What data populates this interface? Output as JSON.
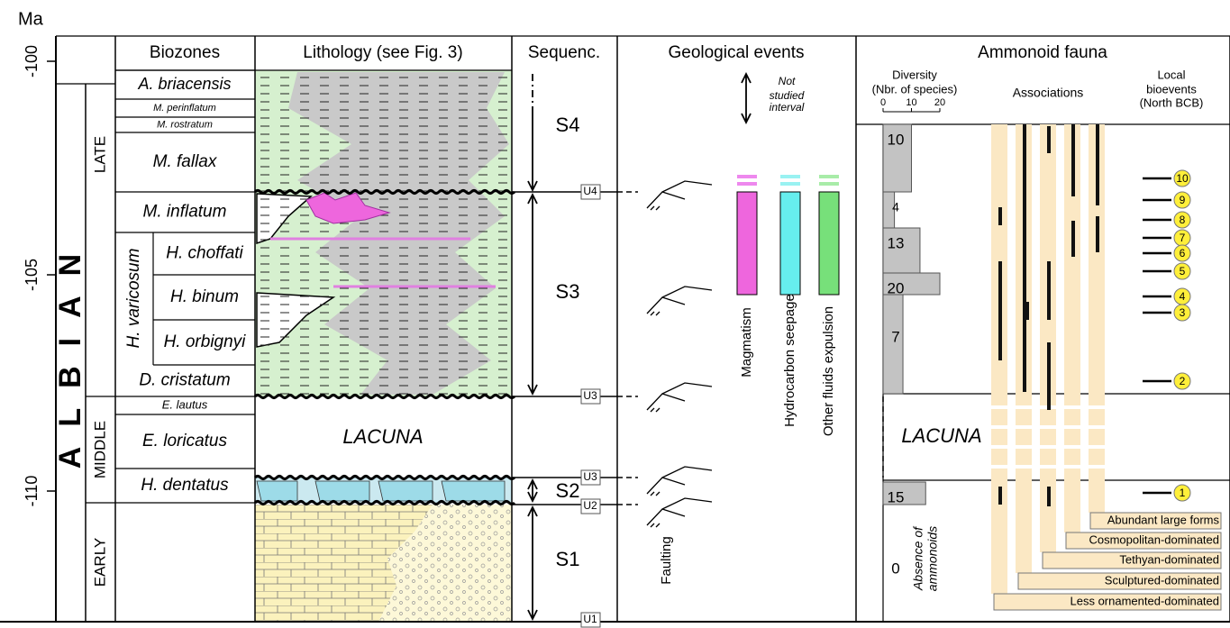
{
  "axis": {
    "unit": "Ma",
    "ticks": [
      "-100",
      "-105",
      "-110"
    ]
  },
  "headers": {
    "biozones": "Biozones",
    "lithology": "Lithology (see Fig. 3)",
    "sequences": "Sequenc.",
    "events": "Geological events",
    "fauna": "Ammonoid fauna"
  },
  "stage": "ALBIAN",
  "substages": [
    "LATE",
    "MIDDLE",
    "EARLY"
  ],
  "biozones": [
    "A. briacensis",
    "M. perinflatum",
    "M. rostratum",
    "M. fallax",
    "M. inflatum",
    "D. cristatum",
    "E. lautus",
    "E. loricatus",
    "H. dentatus"
  ],
  "subzone_group": "H. varicosum",
  "subzones": [
    "H. choffati",
    "H. binum",
    "H. orbignyi"
  ],
  "lithology": {
    "lacuna": "LACUNA"
  },
  "sequences": [
    "S4",
    "S3",
    "S2",
    "S1"
  ],
  "unconformities": [
    "U4",
    "U3",
    "U3",
    "U2",
    "U1"
  ],
  "events": {
    "note": [
      "Not",
      "studied",
      "interval"
    ],
    "bars": [
      "Magmatism",
      "Hydrocarbon seepage",
      "Other fluids expulsion"
    ],
    "faulting": "Faulting"
  },
  "fauna": {
    "diversity": {
      "title": [
        "Diversity",
        "(Nbr. of species)"
      ],
      "ticks": [
        "0",
        "10",
        "20"
      ],
      "values": [
        10,
        4,
        13,
        20,
        7,
        15,
        0
      ],
      "absence": [
        "Absence of",
        "ammonoids"
      ]
    },
    "associations": {
      "title": "Associations",
      "legend": [
        "Abundant large forms",
        "Cosmopolitan-dominated",
        "Tethyan-dominated",
        "Sculptured-dominated",
        "Less ornamented-dominated"
      ]
    },
    "bioevents": {
      "title": [
        "Local",
        "bioevents",
        "(North BCB)"
      ],
      "labels": [
        10,
        9,
        8,
        7,
        6,
        5,
        4,
        3,
        2,
        1
      ]
    },
    "lacuna": "LACUNA"
  }
}
